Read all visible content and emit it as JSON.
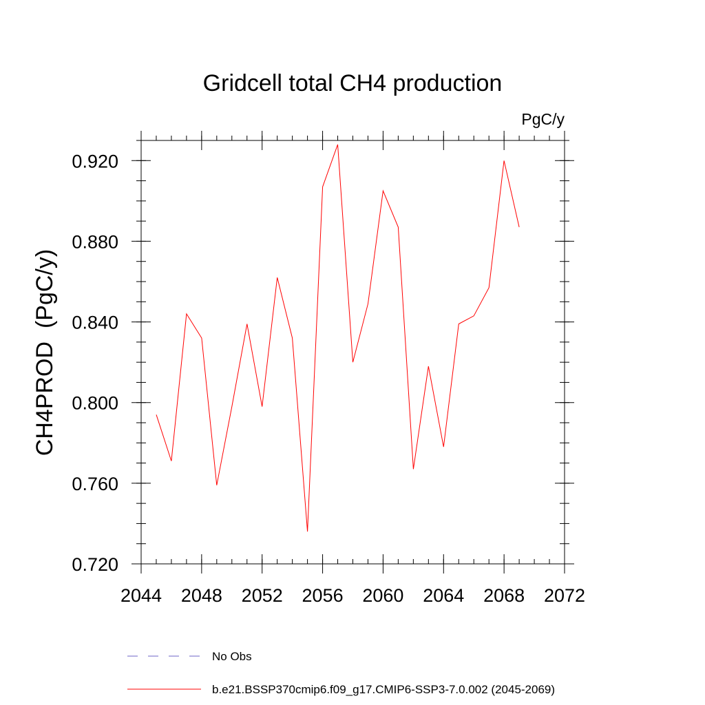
{
  "chart_data": {
    "type": "line",
    "title": "Gridcell total CH4 production",
    "units_label": "PgC/y",
    "xlabel": "",
    "ylabel": "CH4PROD  (PgC/y)",
    "xlim": [
      2044,
      2072
    ],
    "ylim": [
      0.72,
      0.93
    ],
    "x_ticks": [
      2044,
      2048,
      2052,
      2056,
      2060,
      2064,
      2068,
      2072
    ],
    "y_ticks": [
      0.72,
      0.76,
      0.8,
      0.84,
      0.88,
      0.92
    ],
    "x_tick_labels": [
      "2044",
      "2048",
      "2052",
      "2056",
      "2060",
      "2064",
      "2068",
      "2072"
    ],
    "y_tick_labels": [
      "0.720",
      "0.760",
      "0.800",
      "0.840",
      "0.880",
      "0.920"
    ],
    "x_minor_step": 1,
    "y_minor_step": 0.01,
    "grid": false,
    "legend_position": "bottom",
    "series": [
      {
        "name": "b.e21.BSSP370cmip6.f09_g17.CMIP6-SSP3-7.0.002 (2045-2069)",
        "color": "#ff0000",
        "style": "solid",
        "x": [
          2045,
          2046,
          2047,
          2048,
          2049,
          2050,
          2051,
          2052,
          2053,
          2054,
          2055,
          2056,
          2057,
          2058,
          2059,
          2060,
          2061,
          2062,
          2063,
          2064,
          2065,
          2066,
          2067,
          2068,
          2069
        ],
        "values": [
          0.794,
          0.771,
          0.844,
          0.832,
          0.759,
          0.798,
          0.839,
          0.798,
          0.862,
          0.832,
          0.736,
          0.907,
          0.928,
          0.82,
          0.849,
          0.905,
          0.887,
          0.767,
          0.818,
          0.778,
          0.839,
          0.843,
          0.857,
          0.92,
          0.887
        ]
      }
    ],
    "legend": [
      {
        "label": "No Obs",
        "color": "#6b63c7",
        "style": "dashed"
      },
      {
        "label": "b.e21.BSSP370cmip6.f09_g17.CMIP6-SSP3-7.0.002 (2045-2069)",
        "color": "#ff0000",
        "style": "solid"
      }
    ]
  }
}
